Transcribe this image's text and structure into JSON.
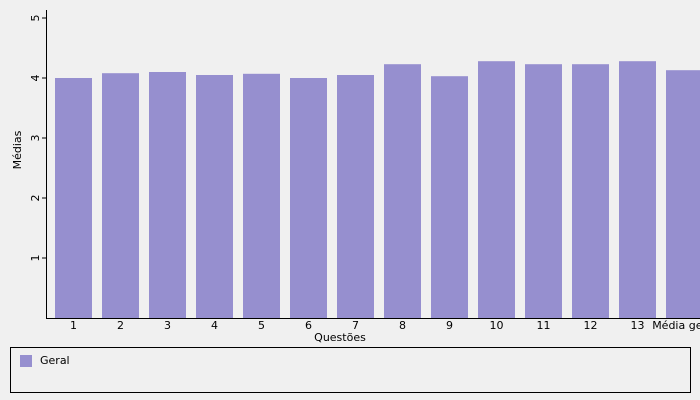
{
  "chart_data": {
    "type": "bar",
    "x_label": "Questões",
    "y_label": "Médias",
    "categories": [
      "1",
      "2",
      "3",
      "4",
      "5",
      "6",
      "7",
      "8",
      "9",
      "10",
      "11",
      "12",
      "13",
      "Média geral"
    ],
    "series": [
      {
        "name": "Geral",
        "color": "#968fcf",
        "values": [
          4.0,
          4.08,
          4.1,
          4.05,
          4.07,
          4.0,
          4.05,
          4.23,
          4.03,
          4.28,
          4.23,
          4.23,
          4.28,
          4.13
        ]
      }
    ],
    "ylim": [
      0,
      5
    ],
    "yticks": [
      1,
      2,
      3,
      4,
      5
    ],
    "grid": false
  }
}
